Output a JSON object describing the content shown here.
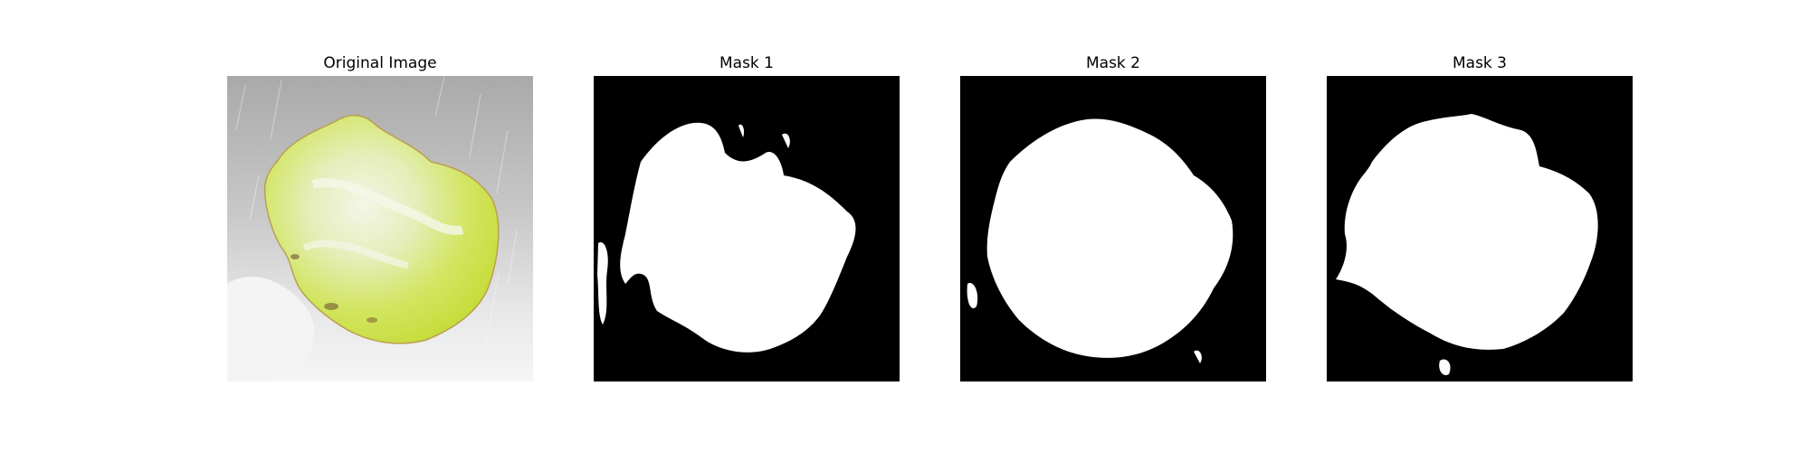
{
  "figure": {
    "panels": [
      {
        "title": "Original Image",
        "kind": "photo"
      },
      {
        "title": "Mask 1",
        "kind": "mask"
      },
      {
        "title": "Mask 2",
        "kind": "mask"
      },
      {
        "title": "Mask 3",
        "kind": "mask"
      }
    ],
    "colors": {
      "mask_background": "#000000",
      "mask_foreground": "#ffffff",
      "photo_background": "#b8b8b8",
      "leaf_green": "#d4e85a",
      "leaf_pale": "#eef3d8"
    }
  }
}
